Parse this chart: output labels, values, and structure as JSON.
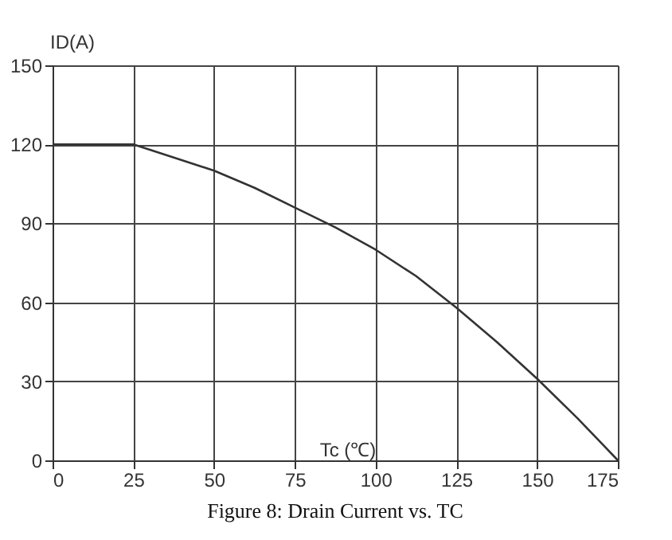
{
  "chart_data": {
    "type": "line",
    "title": "Figure 8: Drain Current vs. TC",
    "xlabel": "Tc (℃)",
    "ylabel": "ID(A)",
    "x": [
      0,
      25,
      37.5,
      50,
      62.5,
      75,
      87.5,
      100,
      112.5,
      125,
      137.5,
      150,
      162.5,
      175
    ],
    "series": [
      {
        "color": "#333333",
        "values": [
          120,
          120,
          115,
          110,
          103.5,
          96,
          88.5,
          80,
          70,
          58,
          45,
          31,
          16,
          0
        ]
      }
    ],
    "xlim": [
      0,
      175
    ],
    "xticks": [
      0,
      25,
      50,
      75,
      100,
      125,
      150,
      175
    ],
    "ylim": [
      0,
      150
    ],
    "yticks": [
      0,
      30,
      60,
      90,
      120,
      150
    ],
    "grid": true,
    "marker": "none",
    "line_style": "solid"
  }
}
